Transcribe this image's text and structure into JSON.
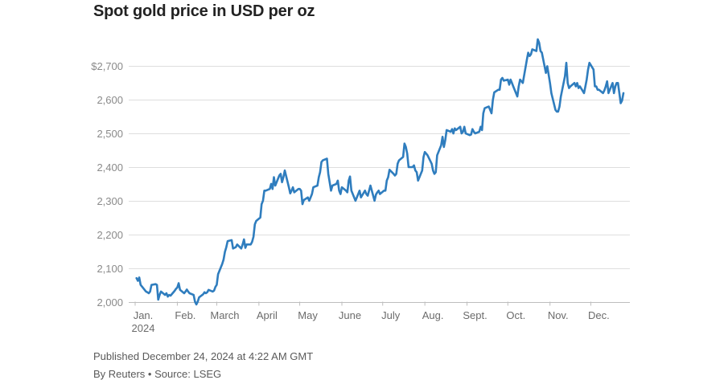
{
  "title": "Spot gold price in USD per oz",
  "footer": {
    "published": "Published December 24, 2024 at 4:22 AM GMT",
    "byline": "By Reuters • Source: LSEG"
  },
  "colors": {
    "line": "#2f7dbe",
    "grid": "#dedede",
    "axis": "#bdbdbd"
  },
  "chart_data": {
    "type": "line",
    "title": "Spot gold price in USD per oz",
    "xlabel": "",
    "ylabel": "",
    "ylim": [
      2000,
      2800
    ],
    "yticks": [
      2000,
      2100,
      2200,
      2300,
      2400,
      2500,
      2600,
      2700
    ],
    "ytick_labels": [
      "2,000",
      "2,100",
      "2,200",
      "2,300",
      "2,400",
      "2,500",
      "2,600",
      "$2,700"
    ],
    "xlim": [
      0,
      359
    ],
    "xticks": [
      {
        "label": "Jan.",
        "sub": "2024",
        "x": 0
      },
      {
        "label": "Feb.",
        "x": 31
      },
      {
        "label": "March",
        "x": 60
      },
      {
        "label": "April",
        "x": 91
      },
      {
        "label": "May",
        "x": 121
      },
      {
        "label": "June",
        "x": 152
      },
      {
        "label": "July",
        "x": 182
      },
      {
        "label": "Aug.",
        "x": 213
      },
      {
        "label": "Sept.",
        "x": 244
      },
      {
        "label": "Oct.",
        "x": 274
      },
      {
        "label": "Nov.",
        "x": 305
      },
      {
        "label": "Dec.",
        "x": 335
      }
    ],
    "grid": true,
    "legend": "none",
    "series": [
      {
        "x_unit": "day of year 2024 (0 = Jan 1)",
        "points": [
          [
            1,
            2070
          ],
          [
            2,
            2062
          ],
          [
            3,
            2072
          ],
          [
            4,
            2050
          ],
          [
            5,
            2045
          ],
          [
            8,
            2030
          ],
          [
            9,
            2028
          ],
          [
            10,
            2025
          ],
          [
            11,
            2030
          ],
          [
            12,
            2050
          ],
          [
            15,
            2052
          ],
          [
            16,
            2050
          ],
          [
            17,
            2006
          ],
          [
            18,
            2020
          ],
          [
            19,
            2030
          ],
          [
            22,
            2020
          ],
          [
            23,
            2025
          ],
          [
            24,
            2015
          ],
          [
            25,
            2020
          ],
          [
            26,
            2018
          ],
          [
            29,
            2032
          ],
          [
            30,
            2038
          ],
          [
            31,
            2042
          ],
          [
            32,
            2055
          ],
          [
            33,
            2035
          ],
          [
            36,
            2025
          ],
          [
            37,
            2030
          ],
          [
            38,
            2036
          ],
          [
            39,
            2030
          ],
          [
            40,
            2025
          ],
          [
            43,
            2020
          ],
          [
            44,
            2000
          ],
          [
            45,
            1992
          ],
          [
            46,
            2000
          ],
          [
            47,
            2013
          ],
          [
            50,
            2022
          ],
          [
            51,
            2028
          ],
          [
            52,
            2025
          ],
          [
            53,
            2028
          ],
          [
            54,
            2035
          ],
          [
            57,
            2030
          ],
          [
            58,
            2033
          ],
          [
            59,
            2044
          ],
          [
            60,
            2050
          ],
          [
            61,
            2082
          ],
          [
            64,
            2112
          ],
          [
            65,
            2125
          ],
          [
            66,
            2148
          ],
          [
            67,
            2162
          ],
          [
            68,
            2180
          ],
          [
            71,
            2183
          ],
          [
            72,
            2158
          ],
          [
            73,
            2160
          ],
          [
            74,
            2162
          ],
          [
            75,
            2170
          ],
          [
            78,
            2158
          ],
          [
            79,
            2170
          ],
          [
            80,
            2185
          ],
          [
            81,
            2160
          ],
          [
            82,
            2170
          ],
          [
            85,
            2170
          ],
          [
            86,
            2178
          ],
          [
            87,
            2193
          ],
          [
            88,
            2230
          ],
          [
            89,
            2240
          ],
          [
            92,
            2250
          ],
          [
            93,
            2290
          ],
          [
            94,
            2300
          ],
          [
            95,
            2330
          ],
          [
            96,
            2330
          ],
          [
            99,
            2335
          ],
          [
            100,
            2350
          ],
          [
            101,
            2335
          ],
          [
            102,
            2370
          ],
          [
            103,
            2345
          ],
          [
            106,
            2375
          ],
          [
            107,
            2380
          ],
          [
            108,
            2355
          ],
          [
            109,
            2370
          ],
          [
            110,
            2390
          ],
          [
            113,
            2340
          ],
          [
            114,
            2322
          ],
          [
            115,
            2330
          ],
          [
            116,
            2340
          ],
          [
            117,
            2325
          ],
          [
            120,
            2335
          ],
          [
            121,
            2335
          ],
          [
            122,
            2330
          ],
          [
            123,
            2290
          ],
          [
            124,
            2302
          ],
          [
            127,
            2310
          ],
          [
            128,
            2300
          ],
          [
            129,
            2310
          ],
          [
            130,
            2320
          ],
          [
            131,
            2340
          ],
          [
            134,
            2345
          ],
          [
            135,
            2370
          ],
          [
            136,
            2385
          ],
          [
            137,
            2415
          ],
          [
            138,
            2420
          ],
          [
            141,
            2425
          ],
          [
            142,
            2380
          ],
          [
            143,
            2355
          ],
          [
            144,
            2330
          ],
          [
            145,
            2345
          ],
          [
            148,
            2350
          ],
          [
            149,
            2360
          ],
          [
            150,
            2330
          ],
          [
            151,
            2320
          ],
          [
            152,
            2340
          ],
          [
            155,
            2330
          ],
          [
            156,
            2325
          ],
          [
            157,
            2360
          ],
          [
            158,
            2372
          ],
          [
            159,
            2330
          ],
          [
            162,
            2300
          ],
          [
            163,
            2310
          ],
          [
            164,
            2320
          ],
          [
            165,
            2330
          ],
          [
            166,
            2310
          ],
          [
            169,
            2330
          ],
          [
            170,
            2320
          ],
          [
            171,
            2315
          ],
          [
            172,
            2330
          ],
          [
            173,
            2345
          ],
          [
            176,
            2300
          ],
          [
            177,
            2318
          ],
          [
            178,
            2325
          ],
          [
            179,
            2330
          ],
          [
            180,
            2320
          ],
          [
            183,
            2330
          ],
          [
            184,
            2330
          ],
          [
            185,
            2360
          ],
          [
            186,
            2370
          ],
          [
            187,
            2392
          ],
          [
            190,
            2380
          ],
          [
            191,
            2375
          ],
          [
            192,
            2380
          ],
          [
            193,
            2410
          ],
          [
            194,
            2420
          ],
          [
            197,
            2430
          ],
          [
            198,
            2470
          ],
          [
            199,
            2460
          ],
          [
            200,
            2440
          ],
          [
            201,
            2400
          ],
          [
            204,
            2400
          ],
          [
            205,
            2405
          ],
          [
            206,
            2390
          ],
          [
            207,
            2385
          ],
          [
            208,
            2360
          ],
          [
            211,
            2390
          ],
          [
            212,
            2430
          ],
          [
            213,
            2445
          ],
          [
            214,
            2440
          ],
          [
            215,
            2435
          ],
          [
            218,
            2410
          ],
          [
            219,
            2390
          ],
          [
            220,
            2380
          ],
          [
            221,
            2385
          ],
          [
            222,
            2435
          ],
          [
            225,
            2465
          ],
          [
            226,
            2490
          ],
          [
            227,
            2460
          ],
          [
            228,
            2480
          ],
          [
            229,
            2510
          ],
          [
            232,
            2505
          ],
          [
            233,
            2513
          ],
          [
            234,
            2500
          ],
          [
            235,
            2515
          ],
          [
            236,
            2510
          ],
          [
            239,
            2520
          ],
          [
            240,
            2500
          ],
          [
            241,
            2505
          ],
          [
            242,
            2520
          ],
          [
            243,
            2500
          ],
          [
            246,
            2495
          ],
          [
            247,
            2497
          ],
          [
            248,
            2513
          ],
          [
            249,
            2505
          ],
          [
            250,
            2500
          ],
          [
            253,
            2505
          ],
          [
            254,
            2520
          ],
          [
            255,
            2510
          ],
          [
            256,
            2560
          ],
          [
            257,
            2575
          ],
          [
            260,
            2580
          ],
          [
            261,
            2570
          ],
          [
            262,
            2560
          ],
          [
            263,
            2600
          ],
          [
            264,
            2622
          ],
          [
            267,
            2630
          ],
          [
            268,
            2630
          ],
          [
            269,
            2660
          ],
          [
            270,
            2665
          ],
          [
            271,
            2657
          ],
          [
            274,
            2660
          ],
          [
            275,
            2645
          ],
          [
            276,
            2660
          ],
          [
            277,
            2650
          ],
          [
            278,
            2640
          ],
          [
            281,
            2610
          ],
          [
            282,
            2640
          ],
          [
            283,
            2660
          ],
          [
            284,
            2655
          ],
          [
            285,
            2650
          ],
          [
            288,
            2720
          ],
          [
            289,
            2740
          ],
          [
            290,
            2730
          ],
          [
            291,
            2735
          ],
          [
            292,
            2750
          ],
          [
            295,
            2745
          ],
          [
            296,
            2780
          ],
          [
            297,
            2770
          ],
          [
            298,
            2745
          ],
          [
            299,
            2740
          ],
          [
            302,
            2680
          ],
          [
            303,
            2700
          ],
          [
            304,
            2675
          ],
          [
            305,
            2650
          ],
          [
            306,
            2620
          ],
          [
            309,
            2570
          ],
          [
            310,
            2565
          ],
          [
            311,
            2565
          ],
          [
            312,
            2580
          ],
          [
            313,
            2610
          ],
          [
            316,
            2670
          ],
          [
            317,
            2710
          ],
          [
            318,
            2650
          ],
          [
            319,
            2635
          ],
          [
            320,
            2640
          ],
          [
            323,
            2650
          ],
          [
            324,
            2640
          ],
          [
            325,
            2650
          ],
          [
            326,
            2635
          ],
          [
            327,
            2640
          ],
          [
            330,
            2620
          ],
          [
            331,
            2640
          ],
          [
            332,
            2660
          ],
          [
            333,
            2690
          ],
          [
            334,
            2710
          ],
          [
            337,
            2690
          ],
          [
            338,
            2640
          ],
          [
            339,
            2640
          ],
          [
            340,
            2630
          ],
          [
            341,
            2630
          ],
          [
            344,
            2620
          ],
          [
            345,
            2628
          ],
          [
            346,
            2640
          ],
          [
            347,
            2655
          ],
          [
            348,
            2620
          ],
          [
            351,
            2650
          ],
          [
            352,
            2620
          ],
          [
            353,
            2640
          ],
          [
            354,
            2650
          ],
          [
            355,
            2650
          ],
          [
            357,
            2590
          ],
          [
            358,
            2598
          ],
          [
            359,
            2620
          ]
        ]
      }
    ]
  }
}
